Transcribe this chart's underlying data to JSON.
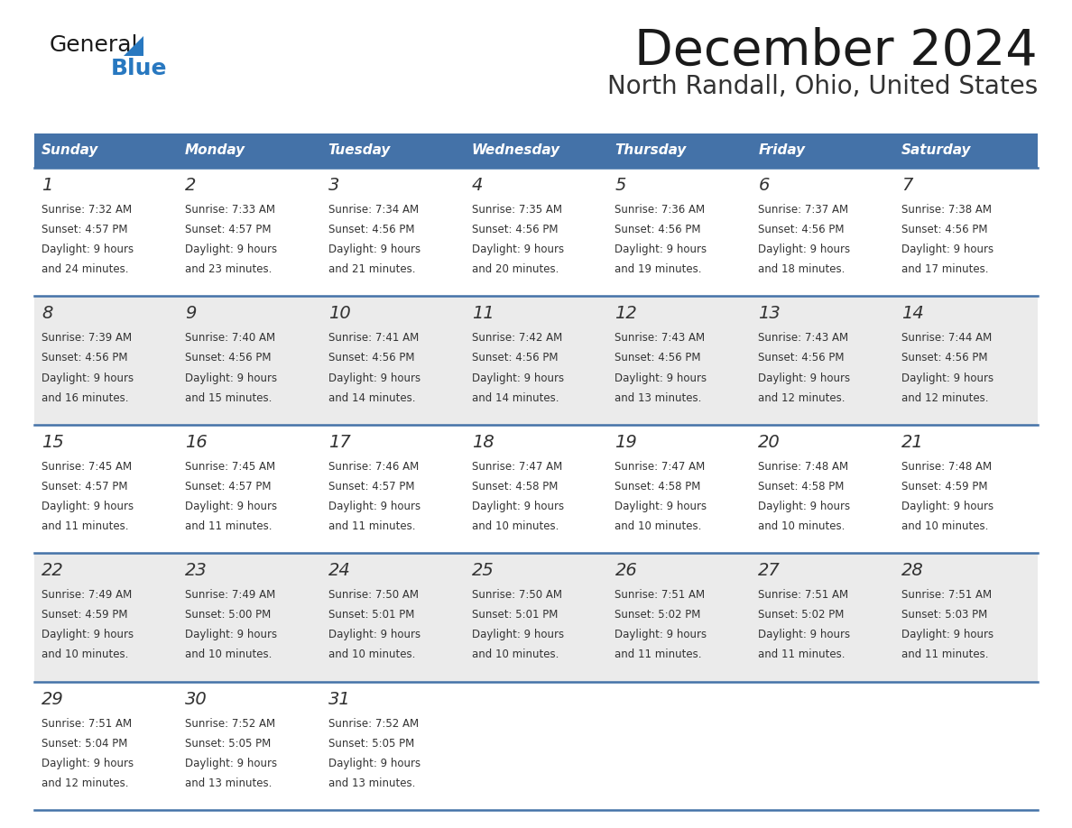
{
  "title": "December 2024",
  "subtitle": "North Randall, Ohio, United States",
  "header_color": "#4472a8",
  "header_text_color": "#ffffff",
  "day_names": [
    "Sunday",
    "Monday",
    "Tuesday",
    "Wednesday",
    "Thursday",
    "Friday",
    "Saturday"
  ],
  "bg_color": "#ffffff",
  "cell_bg_white": "#ffffff",
  "cell_bg_gray": "#ebebeb",
  "border_color": "#4472a8",
  "title_color": "#1a1a1a",
  "subtitle_color": "#333333",
  "day_num_color": "#333333",
  "cell_text_color": "#333333",
  "logo_black": "#1a1a1a",
  "logo_blue": "#2878c0",
  "weeks": [
    [
      {
        "day": "1",
        "sunrise": "7:32 AM",
        "sunset": "4:57 PM",
        "d1": "9 hours",
        "d2": "and 24 minutes."
      },
      {
        "day": "2",
        "sunrise": "7:33 AM",
        "sunset": "4:57 PM",
        "d1": "9 hours",
        "d2": "and 23 minutes."
      },
      {
        "day": "3",
        "sunrise": "7:34 AM",
        "sunset": "4:56 PM",
        "d1": "9 hours",
        "d2": "and 21 minutes."
      },
      {
        "day": "4",
        "sunrise": "7:35 AM",
        "sunset": "4:56 PM",
        "d1": "9 hours",
        "d2": "and 20 minutes."
      },
      {
        "day": "5",
        "sunrise": "7:36 AM",
        "sunset": "4:56 PM",
        "d1": "9 hours",
        "d2": "and 19 minutes."
      },
      {
        "day": "6",
        "sunrise": "7:37 AM",
        "sunset": "4:56 PM",
        "d1": "9 hours",
        "d2": "and 18 minutes."
      },
      {
        "day": "7",
        "sunrise": "7:38 AM",
        "sunset": "4:56 PM",
        "d1": "9 hours",
        "d2": "and 17 minutes."
      }
    ],
    [
      {
        "day": "8",
        "sunrise": "7:39 AM",
        "sunset": "4:56 PM",
        "d1": "9 hours",
        "d2": "and 16 minutes."
      },
      {
        "day": "9",
        "sunrise": "7:40 AM",
        "sunset": "4:56 PM",
        "d1": "9 hours",
        "d2": "and 15 minutes."
      },
      {
        "day": "10",
        "sunrise": "7:41 AM",
        "sunset": "4:56 PM",
        "d1": "9 hours",
        "d2": "and 14 minutes."
      },
      {
        "day": "11",
        "sunrise": "7:42 AM",
        "sunset": "4:56 PM",
        "d1": "9 hours",
        "d2": "and 14 minutes."
      },
      {
        "day": "12",
        "sunrise": "7:43 AM",
        "sunset": "4:56 PM",
        "d1": "9 hours",
        "d2": "and 13 minutes."
      },
      {
        "day": "13",
        "sunrise": "7:43 AM",
        "sunset": "4:56 PM",
        "d1": "9 hours",
        "d2": "and 12 minutes."
      },
      {
        "day": "14",
        "sunrise": "7:44 AM",
        "sunset": "4:56 PM",
        "d1": "9 hours",
        "d2": "and 12 minutes."
      }
    ],
    [
      {
        "day": "15",
        "sunrise": "7:45 AM",
        "sunset": "4:57 PM",
        "d1": "9 hours",
        "d2": "and 11 minutes."
      },
      {
        "day": "16",
        "sunrise": "7:45 AM",
        "sunset": "4:57 PM",
        "d1": "9 hours",
        "d2": "and 11 minutes."
      },
      {
        "day": "17",
        "sunrise": "7:46 AM",
        "sunset": "4:57 PM",
        "d1": "9 hours",
        "d2": "and 11 minutes."
      },
      {
        "day": "18",
        "sunrise": "7:47 AM",
        "sunset": "4:58 PM",
        "d1": "9 hours",
        "d2": "and 10 minutes."
      },
      {
        "day": "19",
        "sunrise": "7:47 AM",
        "sunset": "4:58 PM",
        "d1": "9 hours",
        "d2": "and 10 minutes."
      },
      {
        "day": "20",
        "sunrise": "7:48 AM",
        "sunset": "4:58 PM",
        "d1": "9 hours",
        "d2": "and 10 minutes."
      },
      {
        "day": "21",
        "sunrise": "7:48 AM",
        "sunset": "4:59 PM",
        "d1": "9 hours",
        "d2": "and 10 minutes."
      }
    ],
    [
      {
        "day": "22",
        "sunrise": "7:49 AM",
        "sunset": "4:59 PM",
        "d1": "9 hours",
        "d2": "and 10 minutes."
      },
      {
        "day": "23",
        "sunrise": "7:49 AM",
        "sunset": "5:00 PM",
        "d1": "9 hours",
        "d2": "and 10 minutes."
      },
      {
        "day": "24",
        "sunrise": "7:50 AM",
        "sunset": "5:01 PM",
        "d1": "9 hours",
        "d2": "and 10 minutes."
      },
      {
        "day": "25",
        "sunrise": "7:50 AM",
        "sunset": "5:01 PM",
        "d1": "9 hours",
        "d2": "and 10 minutes."
      },
      {
        "day": "26",
        "sunrise": "7:51 AM",
        "sunset": "5:02 PM",
        "d1": "9 hours",
        "d2": "and 11 minutes."
      },
      {
        "day": "27",
        "sunrise": "7:51 AM",
        "sunset": "5:02 PM",
        "d1": "9 hours",
        "d2": "and 11 minutes."
      },
      {
        "day": "28",
        "sunrise": "7:51 AM",
        "sunset": "5:03 PM",
        "d1": "9 hours",
        "d2": "and 11 minutes."
      }
    ],
    [
      {
        "day": "29",
        "sunrise": "7:51 AM",
        "sunset": "5:04 PM",
        "d1": "9 hours",
        "d2": "and 12 minutes."
      },
      {
        "day": "30",
        "sunrise": "7:52 AM",
        "sunset": "5:05 PM",
        "d1": "9 hours",
        "d2": "and 13 minutes."
      },
      {
        "day": "31",
        "sunrise": "7:52 AM",
        "sunset": "5:05 PM",
        "d1": "9 hours",
        "d2": "and 13 minutes."
      },
      null,
      null,
      null,
      null
    ]
  ]
}
